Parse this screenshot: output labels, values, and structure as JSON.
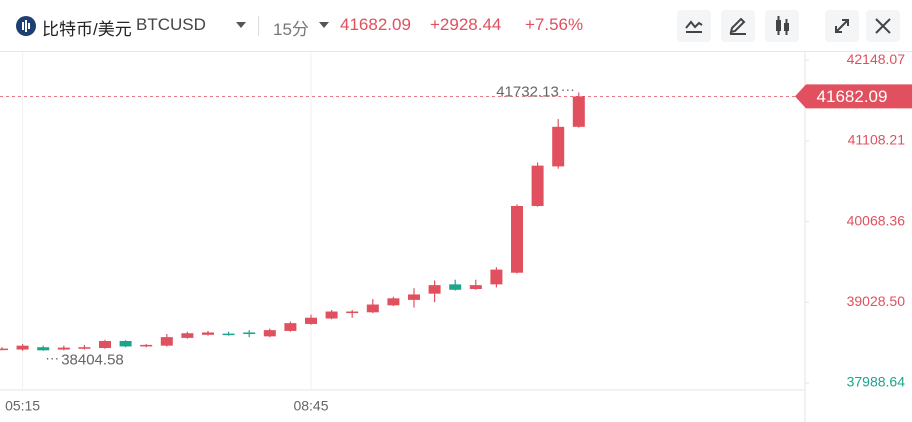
{
  "header": {
    "title": "比特币/美元",
    "symbol": "BTCUSD",
    "interval": "15分",
    "change": "+2928.44",
    "change_pct": "+7.56%"
  },
  "chart_data": {
    "type": "candlestick",
    "categories": [
      null,
      "05:15",
      null,
      null,
      null,
      null,
      null,
      null,
      null,
      null,
      null,
      null,
      null,
      null,
      null,
      "08:45",
      null,
      null,
      null,
      null,
      null,
      null,
      null,
      null,
      null,
      null,
      null,
      null,
      null
    ],
    "open": [
      38430,
      38420,
      38450,
      38420,
      38430,
      38440,
      38530,
      38460,
      38470,
      38570,
      38610,
      38625,
      38640,
      38590,
      38660,
      38750,
      38820,
      38890,
      38900,
      38990,
      39060,
      39140,
      39260,
      39200,
      39260,
      39410,
      40270,
      40780,
      41290
    ],
    "high": [
      38450,
      38490,
      38470,
      38470,
      38480,
      38545,
      38540,
      38490,
      38620,
      38650,
      38660,
      38650,
      38670,
      38690,
      38780,
      38870,
      38930,
      38930,
      39070,
      39100,
      39210,
      39310,
      39320,
      39320,
      39480,
      40290,
      40830,
      41390,
      41732.13
    ],
    "low": [
      38410,
      38405,
      38404.58,
      38410,
      38420,
      38430,
      38450,
      38450,
      38460,
      38560,
      38600,
      38600,
      38580,
      38580,
      38650,
      38740,
      38810,
      38830,
      38890,
      38980,
      38960,
      39030,
      39180,
      39190,
      39220,
      39400,
      40260,
      40750,
      41280
    ],
    "close": [
      38432,
      38470,
      38410,
      38445,
      38450,
      38530,
      38460,
      38480,
      38580,
      38630,
      38640,
      38620,
      38620,
      38670,
      38760,
      38830,
      38910,
      38910,
      39000,
      39080,
      39130,
      39250,
      39190,
      39250,
      39450,
      40270,
      40790,
      41290,
      41682.09
    ],
    "up_color": "#e0505e",
    "down_color": "#1ca58d",
    "ylim": [
      37860,
      42280
    ],
    "yticks": [
      42148.07,
      41108.21,
      40068.36,
      {
        "value": 39028.5,
        "label": "39028.50"
      },
      37988.64
    ],
    "ytick_colors": [
      "#e0505e",
      "#e0505e",
      "#e0505e",
      "#e0505e",
      "#1ca58d"
    ]
  }
}
